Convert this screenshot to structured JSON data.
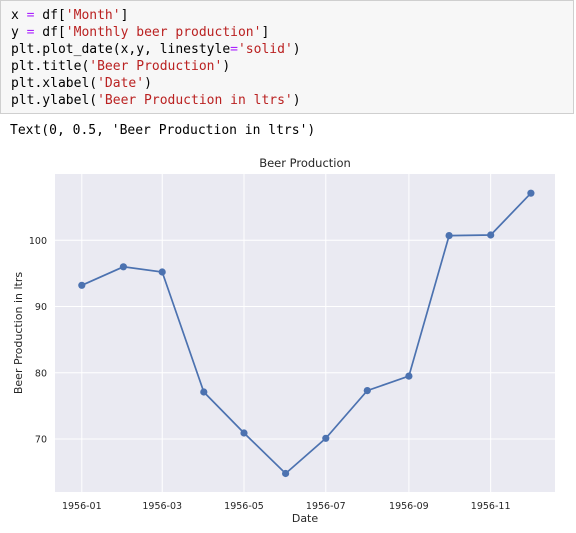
{
  "code_cell": {
    "lines": [
      [
        {
          "t": "x "
        },
        {
          "t": "=",
          "c": "op"
        },
        {
          "t": " df["
        },
        {
          "t": "'Month'",
          "c": "s"
        },
        {
          "t": "]"
        }
      ],
      [
        {
          "t": "y "
        },
        {
          "t": "=",
          "c": "op"
        },
        {
          "t": " df["
        },
        {
          "t": "'Monthly beer production'",
          "c": "s"
        },
        {
          "t": "]"
        }
      ],
      [
        {
          "t": "plt.plot_date(x,y, linestyle"
        },
        {
          "t": "=",
          "c": "op"
        },
        {
          "t": "'solid'",
          "c": "s"
        },
        {
          "t": ")"
        }
      ],
      [
        {
          "t": "plt.title("
        },
        {
          "t": "'Beer Production'",
          "c": "s"
        },
        {
          "t": ")"
        }
      ],
      [
        {
          "t": "plt.xlabel("
        },
        {
          "t": "'Date'",
          "c": "s"
        },
        {
          "t": ")"
        }
      ],
      [
        {
          "t": "plt.ylabel("
        },
        {
          "t": "'Beer Production in ltrs'",
          "c": "s"
        },
        {
          "t": ")"
        }
      ]
    ]
  },
  "output_text": "Text(0, 0.5, 'Beer Production in ltrs')",
  "chart_data": {
    "type": "line",
    "title": "Beer Production",
    "xlabel": "Date",
    "ylabel": "Beer Production in ltrs",
    "x": [
      "1956-01",
      "1956-02",
      "1956-03",
      "1956-04",
      "1956-05",
      "1956-06",
      "1956-07",
      "1956-08",
      "1956-09",
      "1956-10",
      "1956-11",
      "1956-12"
    ],
    "values": [
      93.2,
      96.0,
      95.2,
      77.1,
      70.9,
      64.8,
      70.1,
      77.3,
      79.5,
      100.7,
      100.8,
      107.1
    ],
    "xticks": [
      "1956-01",
      "1956-03",
      "1956-05",
      "1956-07",
      "1956-09",
      "1956-11"
    ],
    "yticks": [
      70,
      80,
      90,
      100
    ],
    "ylim": [
      62,
      110
    ],
    "xlim": [
      "1955-12-12",
      "1956-12-19"
    ],
    "grid": true,
    "colors": {
      "background": "#eaeaf2",
      "line": "#4c72b0",
      "grid": "#ffffff"
    }
  }
}
